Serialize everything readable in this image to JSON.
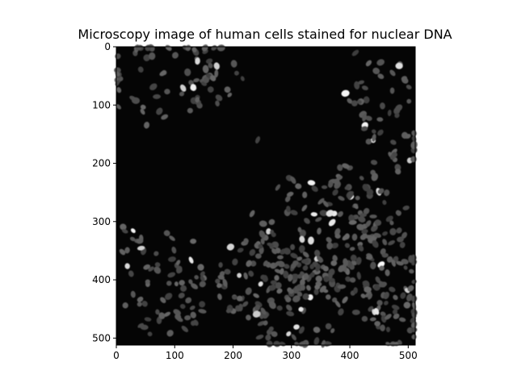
{
  "figure": {
    "title": "Microscopy image of human cells stained for nuclear DNA"
  },
  "axes": {
    "x_ticks": [
      0,
      100,
      200,
      300,
      400,
      500
    ],
    "y_ticks": [
      0,
      100,
      200,
      300,
      400,
      500
    ],
    "x_range": [
      0,
      512
    ],
    "y_range": [
      0,
      512
    ],
    "y_inverted": true
  },
  "image": {
    "description_colors": {
      "background": "#050505",
      "nucleus": "#5e5e5e",
      "bright_nucleus": "#d8d8d8"
    }
  }
}
